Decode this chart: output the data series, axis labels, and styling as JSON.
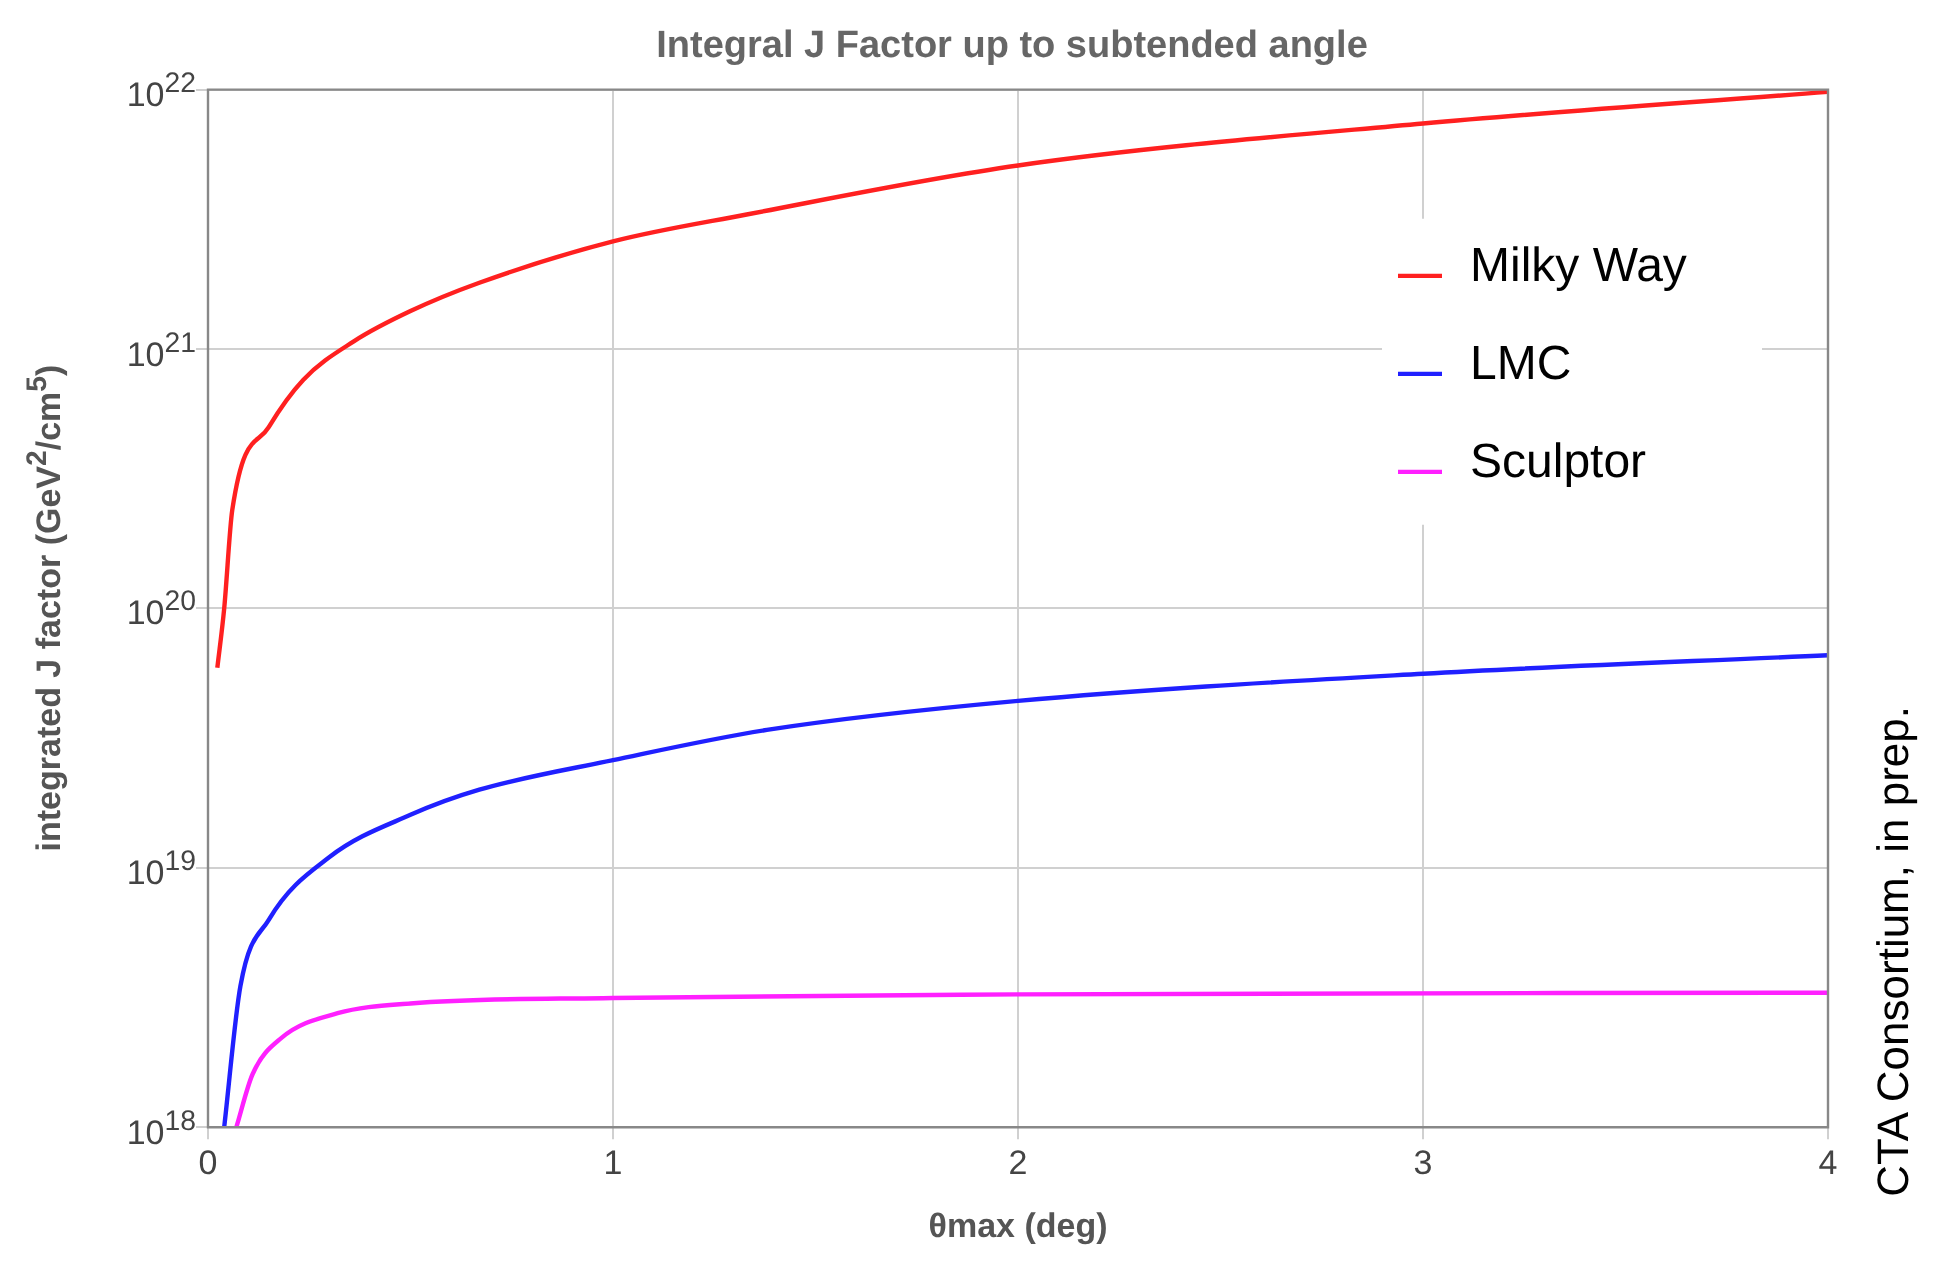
{
  "chart_data": {
    "type": "line",
    "title": "Integral J Factor up to subtended angle",
    "xlabel": "θmax (deg)",
    "ylabel": "integrated J factor (GeV$^{2}$/cm$^{5}$)",
    "annotations": [
      "CTA Consortium, in prep."
    ],
    "xlim": [
      0,
      4
    ],
    "xticks": [
      0,
      1,
      2,
      3,
      4
    ],
    "ylim": [
      1e+18,
      1e+22
    ],
    "log": "y",
    "yticks": [
      {
        "value": 1e+18,
        "label": "10$^{18}$"
      },
      {
        "value": 1e+19,
        "label": "10$^{19}$"
      },
      {
        "value": 1e+20,
        "label": "10$^{20}$"
      },
      {
        "value": 1e+21,
        "label": "10$^{21}$"
      },
      {
        "value": 1e+22,
        "label": "10$^{22}$"
      }
    ],
    "grid": true,
    "legend": "top right",
    "marker": "none",
    "line_style": "solid",
    "series": [
      {
        "name": "Milky Way",
        "color": "#ff2020",
        "x": [
          0.023,
          0.04,
          0.06,
          0.15,
          0.235,
          0.36,
          0.5,
          0.67,
          1,
          1.33,
          2,
          3,
          4
        ],
        "values": [
          5.9e+19,
          1e+20,
          2.4e+20,
          5e+20,
          7.6e+20,
          1.07e+21,
          1.4e+21,
          1.8e+21,
          2.6e+21,
          3.3e+21,
          5.1e+21,
          7.4e+21,
          9.8e+21
        ]
      },
      {
        "name": "LMC",
        "color": "#2020ff",
        "x": [
          0.04,
          0.08,
          0.15,
          0.3,
          0.5,
          0.67,
          1,
          1.38,
          2,
          3,
          4
        ],
        "values": [
          1e+18,
          3.5e+18,
          6.3e+18,
          1.1e+19,
          1.6e+19,
          2e+19,
          2.6e+19,
          3.4e+19,
          4.4e+19,
          5.6e+19,
          6.6e+19
        ]
      },
      {
        "name": "Sculptor",
        "color": "#ff20ff",
        "x": [
          0.07,
          0.11,
          0.18,
          0.32,
          0.5,
          1,
          2,
          4
        ],
        "values": [
          1e+18,
          1.6e+18,
          2.2e+18,
          2.75e+18,
          3e+18,
          3.15e+18,
          3.25e+18,
          3.3e+18
        ]
      }
    ]
  }
}
